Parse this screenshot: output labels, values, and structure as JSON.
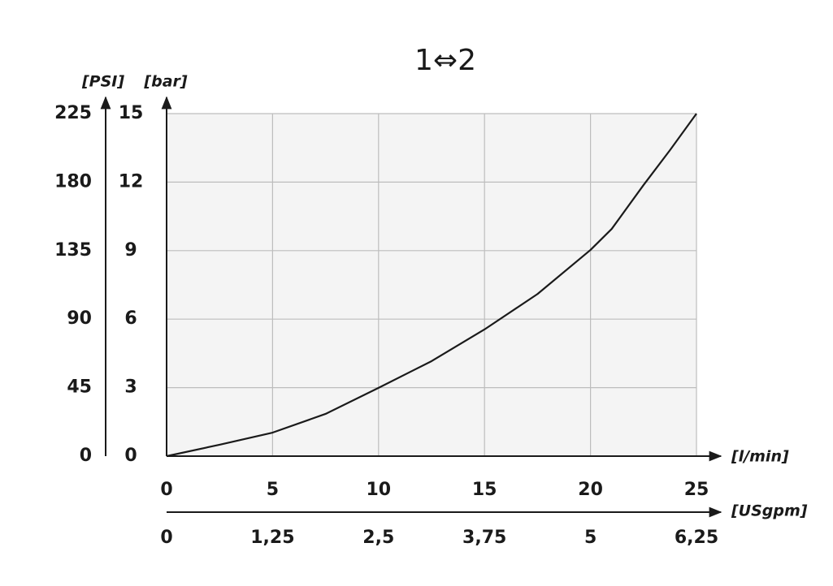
{
  "chart_data": {
    "type": "line",
    "title": "1⇔2",
    "x": [
      0,
      2.5,
      5,
      7.5,
      10,
      12.5,
      15,
      17.5,
      20,
      21,
      22.5,
      23.75,
      25
    ],
    "series": [
      {
        "color": "#1a1a1a",
        "values": [
          0,
          0.5,
          1.03,
          1.85,
          2.99,
          4.16,
          5.55,
          7.1,
          9.03,
          9.95,
          11.87,
          13.4,
          15
        ]
      }
    ],
    "xlim": [
      0,
      25
    ],
    "xticks": [
      0,
      5,
      10,
      15,
      20,
      25
    ],
    "x_label": "[l/min]",
    "ylim": [
      0,
      15
    ],
    "yticks": [
      0,
      3,
      6,
      9,
      12,
      15
    ],
    "y_label": "[bar]",
    "y2lim": [
      0,
      225
    ],
    "y2ticks": [
      0,
      45,
      90,
      135,
      180,
      225
    ],
    "y2_label": "[PSI]",
    "x2lim": [
      0,
      6.25
    ],
    "x2ticks": [
      0,
      {
        "value": 1.25,
        "label": "1,25"
      },
      {
        "value": 2.5,
        "label": "2,5"
      },
      {
        "value": 3.75,
        "label": "3,75"
      },
      5,
      {
        "value": 6.25,
        "label": "6,25"
      }
    ],
    "x2_label": "[USgpm]",
    "grid": true
  }
}
